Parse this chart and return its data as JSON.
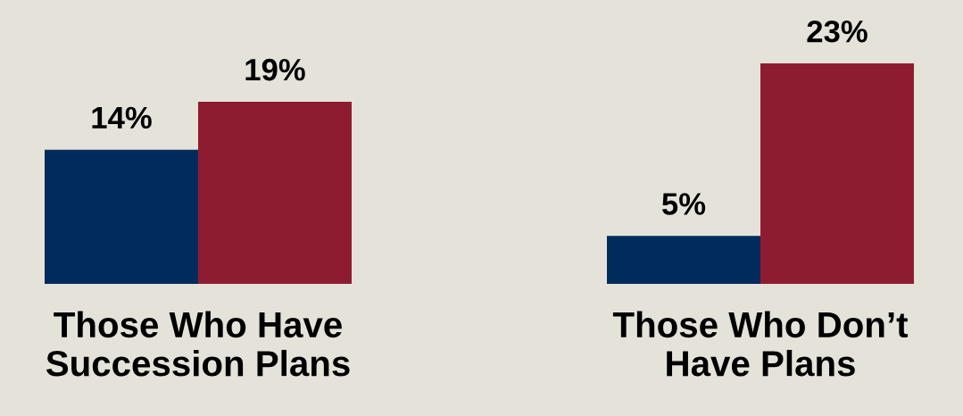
{
  "chart_data": {
    "type": "bar",
    "categories": [
      "Those Who Have\nSuccession Plans",
      "Those Who Don’t\nHave Plans"
    ],
    "series": [
      {
        "color": "#002b5c",
        "values": [
          14,
          5
        ],
        "value_labels": [
          "14%",
          "5%"
        ]
      },
      {
        "color": "#8e1c30",
        "values": [
          19,
          23
        ],
        "value_labels": [
          "19%",
          "23%"
        ]
      }
    ],
    "grid": false,
    "legend": false
  }
}
